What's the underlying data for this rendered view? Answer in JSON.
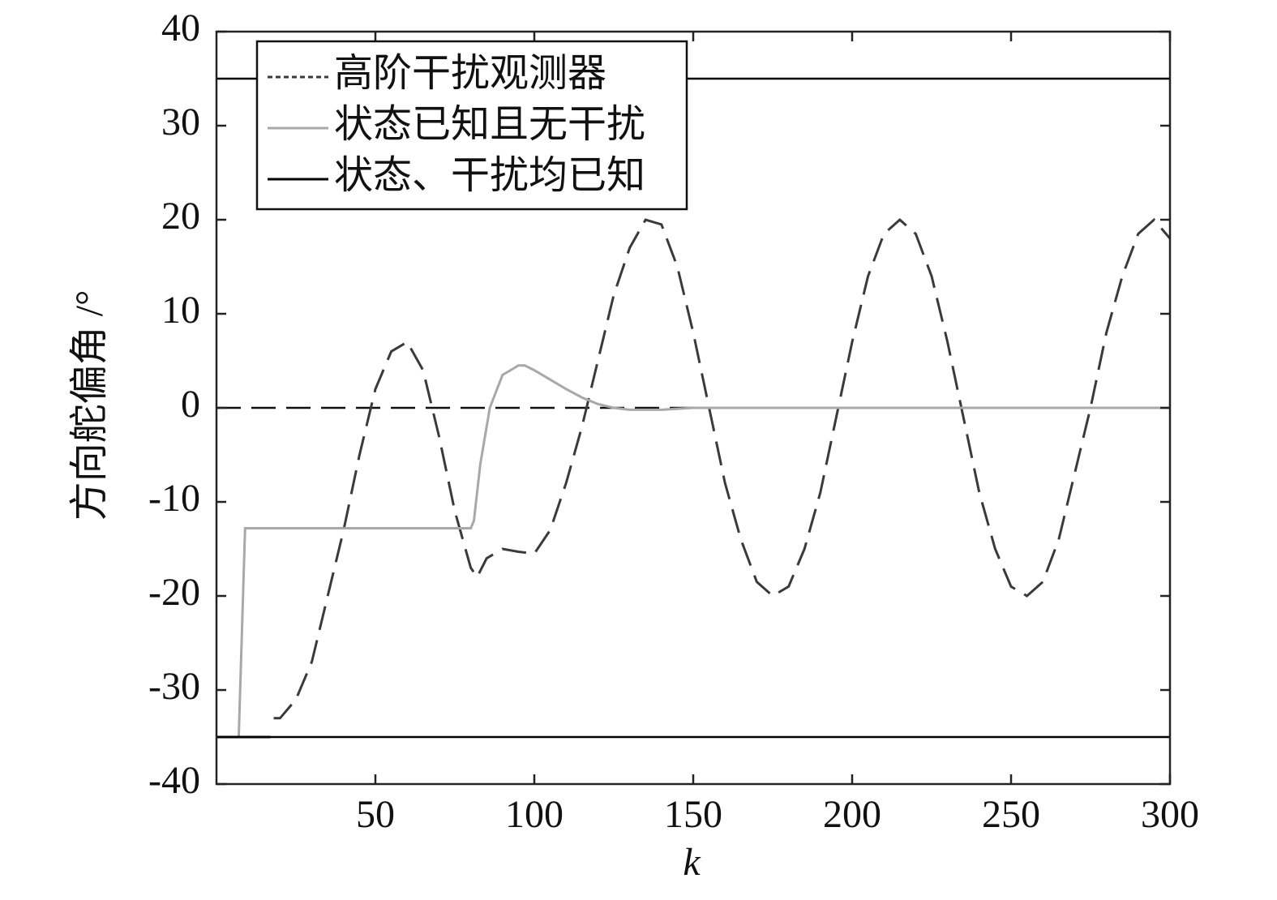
{
  "chart_data": {
    "type": "line",
    "x_label": "k",
    "y_label": "方向舵偏角 /°",
    "xlim": [
      0,
      300
    ],
    "xticks": [
      50,
      100,
      150,
      200,
      250,
      300
    ],
    "ylim": [
      -40,
      40
    ],
    "yticks": [
      -40,
      -30,
      -20,
      -10,
      0,
      10,
      20,
      30,
      40
    ],
    "reference_lines": [
      35,
      -35
    ],
    "zero_line": true,
    "series": [
      {
        "name": "高阶干扰观测器",
        "color": "#3a3a3a",
        "dashed": true,
        "x": [
          18,
          20,
          25,
          30,
          35,
          40,
          45,
          50,
          55,
          60,
          65,
          70,
          75,
          80,
          82,
          85,
          90,
          95,
          100,
          105,
          110,
          115,
          120,
          125,
          130,
          135,
          140,
          145,
          150,
          155,
          160,
          165,
          170,
          175,
          180,
          185,
          190,
          195,
          200,
          205,
          210,
          215,
          220,
          225,
          230,
          235,
          240,
          245,
          250,
          255,
          260,
          265,
          270,
          275,
          280,
          285,
          290,
          295,
          300
        ],
        "values": [
          -33,
          -33,
          -31,
          -27,
          -20,
          -13,
          -5,
          2,
          6,
          7,
          4,
          -3,
          -11,
          -17,
          -18,
          -16,
          -15,
          -15.3,
          -15.5,
          -13,
          -8,
          -2,
          5,
          12,
          17,
          20,
          19.5,
          15,
          8,
          0,
          -8,
          -14,
          -18.5,
          -20,
          -19,
          -15,
          -9,
          -1,
          7,
          14,
          18.5,
          20,
          18.5,
          14,
          7,
          -1,
          -9,
          -15,
          -19,
          -20,
          -18.5,
          -14,
          -7,
          0,
          8,
          14,
          18.5,
          20,
          18
        ]
      },
      {
        "name": "状态已知且无干扰",
        "color": "#a8a8a8",
        "dashed": false,
        "x": [
          0,
          7,
          9,
          80,
          81,
          83,
          86,
          90,
          95,
          97,
          100,
          105,
          110,
          115,
          120,
          125,
          130,
          140,
          150,
          300
        ],
        "values": [
          -35,
          -35,
          -12.8,
          -12.8,
          -12,
          -6,
          0,
          3.5,
          4.5,
          4.5,
          4,
          3,
          2,
          1.1,
          0.4,
          0,
          -0.2,
          -0.2,
          0,
          0
        ]
      },
      {
        "name": "状态、干扰均已知",
        "color": "#000000",
        "dashed": false,
        "x": [
          0,
          17
        ],
        "values": [
          -35,
          -35
        ]
      }
    ]
  }
}
